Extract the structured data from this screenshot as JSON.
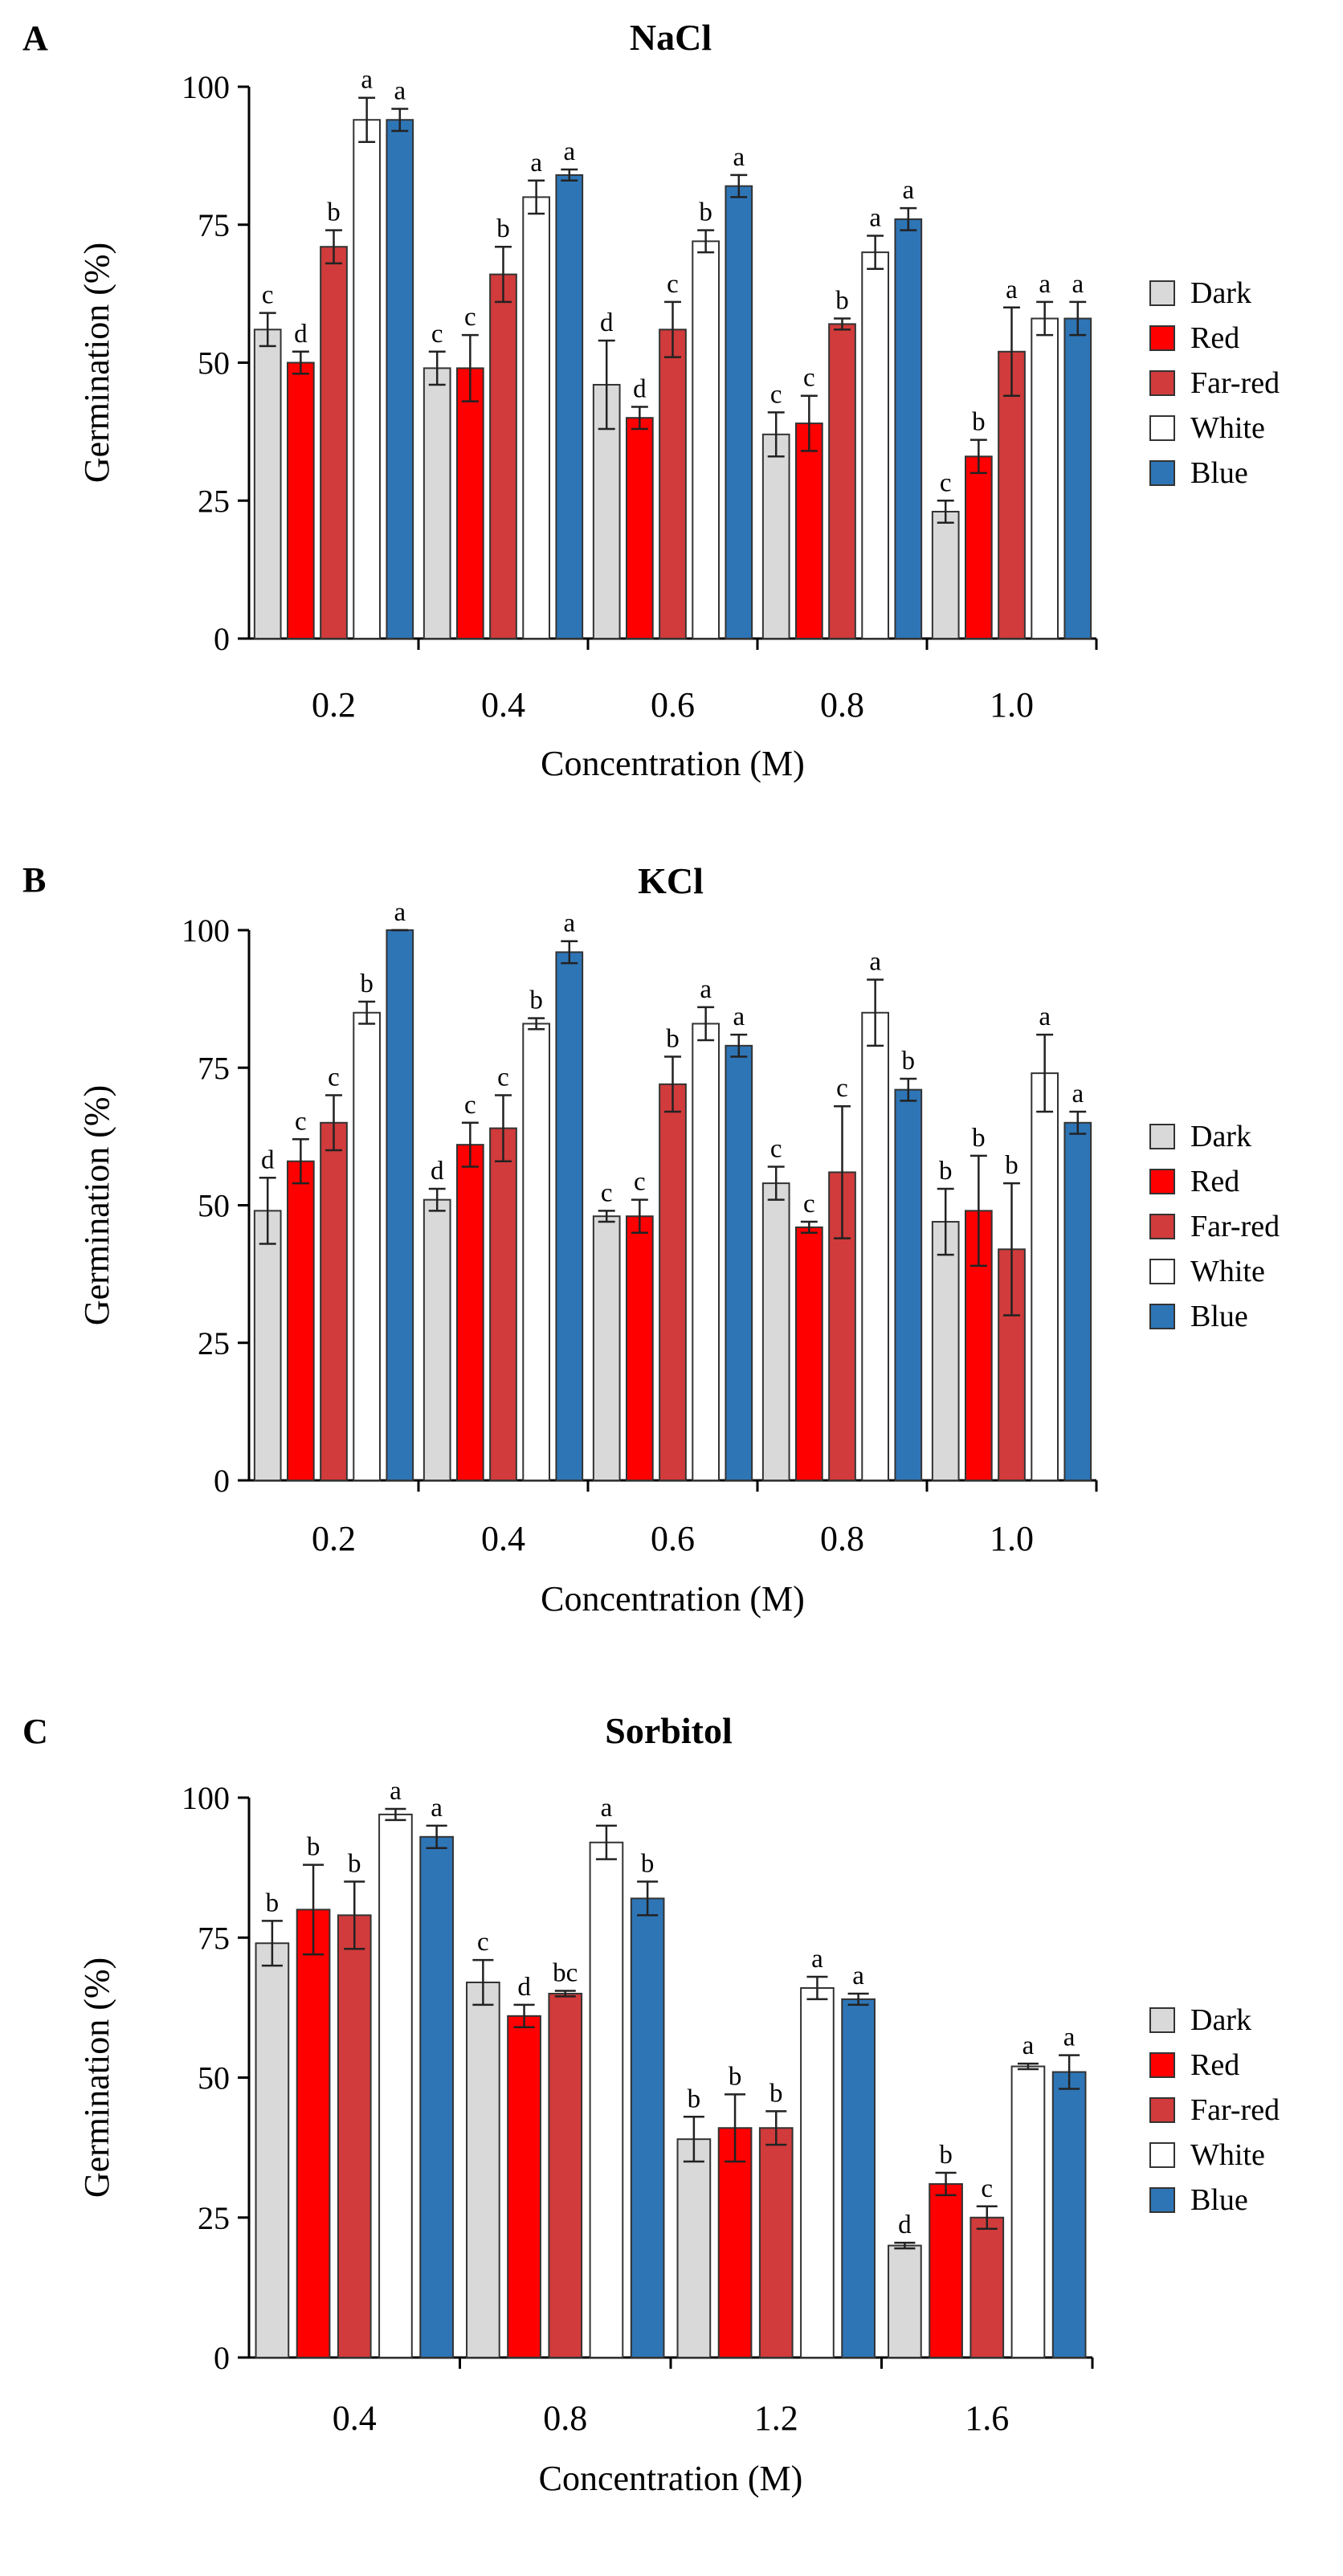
{
  "figure": {
    "series_meta": [
      {
        "name": "Dark",
        "color": "#d9d9d9"
      },
      {
        "name": "Red",
        "color": "#ff0000"
      },
      {
        "name": "Far-red",
        "color": "#d13b3b"
      },
      {
        "name": "White",
        "color": "#ffffff"
      },
      {
        "name": "Blue",
        "color": "#2e75b6"
      }
    ]
  },
  "chart_data": [
    {
      "panel": "A",
      "type": "bar",
      "title": "NaCl",
      "xlabel": "Concentration (M)",
      "ylabel": "Germination (%)",
      "ylim": [
        0,
        100
      ],
      "yticks": [
        "0",
        "25",
        "50",
        "75",
        "100"
      ],
      "legend_position": "right",
      "categories": [
        "0.2",
        "0.4",
        "0.6",
        "0.8",
        "1.0"
      ],
      "series": [
        {
          "name": "Dark",
          "color": "#d9d9d9",
          "values": [
            56,
            49,
            46,
            37,
            23
          ],
          "errors": [
            3,
            3,
            8,
            4,
            2
          ],
          "letters": [
            "c",
            "c",
            "d",
            "c",
            "c"
          ]
        },
        {
          "name": "Red",
          "color": "#ff0000",
          "values": [
            50,
            49,
            40,
            39,
            33
          ],
          "errors": [
            2,
            6,
            2,
            5,
            3
          ],
          "letters": [
            "d",
            "c",
            "d",
            "c",
            "b"
          ]
        },
        {
          "name": "Far-red",
          "color": "#d13b3b",
          "values": [
            71,
            66,
            56,
            57,
            52
          ],
          "errors": [
            3,
            5,
            5,
            1,
            8
          ],
          "letters": [
            "b",
            "b",
            "c",
            "b",
            "a"
          ]
        },
        {
          "name": "White",
          "color": "#ffffff",
          "values": [
            94,
            80,
            72,
            70,
            58
          ],
          "errors": [
            4,
            3,
            2,
            3,
            3
          ],
          "letters": [
            "a",
            "a",
            "b",
            "a",
            "a"
          ]
        },
        {
          "name": "Blue",
          "color": "#2e75b6",
          "values": [
            94,
            84,
            82,
            76,
            58
          ],
          "errors": [
            2,
            1,
            2,
            2,
            3
          ],
          "letters": [
            "a",
            "a",
            "a",
            "a",
            "a"
          ]
        }
      ]
    },
    {
      "panel": "B",
      "type": "bar",
      "title": "KCl",
      "xlabel": "Concentration (M)",
      "ylabel": "Germination (%)",
      "ylim": [
        0,
        100
      ],
      "yticks": [
        "0",
        "25",
        "50",
        "75",
        "100"
      ],
      "legend_position": "right",
      "categories": [
        "0.2",
        "0.4",
        "0.6",
        "0.8",
        "1.0"
      ],
      "series": [
        {
          "name": "Dark",
          "color": "#d9d9d9",
          "values": [
            49,
            51,
            48,
            54,
            47
          ],
          "errors": [
            6,
            2,
            1,
            3,
            6
          ],
          "letters": [
            "d",
            "d",
            "c",
            "c",
            "b"
          ]
        },
        {
          "name": "Red",
          "color": "#ff0000",
          "values": [
            58,
            61,
            48,
            46,
            49
          ],
          "errors": [
            4,
            4,
            3,
            1,
            10
          ],
          "letters": [
            "c",
            "c",
            "c",
            "c",
            "b"
          ]
        },
        {
          "name": "Far-red",
          "color": "#d13b3b",
          "values": [
            65,
            64,
            72,
            56,
            42
          ],
          "errors": [
            5,
            6,
            5,
            12,
            12
          ],
          "letters": [
            "c",
            "c",
            "b",
            "c",
            "b"
          ]
        },
        {
          "name": "White",
          "color": "#ffffff",
          "values": [
            85,
            83,
            83,
            85,
            74
          ],
          "errors": [
            2,
            1,
            3,
            6,
            7
          ],
          "letters": [
            "b",
            "b",
            "a",
            "a",
            "a"
          ]
        },
        {
          "name": "Blue",
          "color": "#2e75b6",
          "values": [
            100,
            96,
            79,
            71,
            65
          ],
          "errors": [
            0,
            2,
            2,
            2,
            2
          ],
          "letters": [
            "a",
            "a",
            "a",
            "b",
            "a"
          ]
        }
      ]
    },
    {
      "panel": "C",
      "type": "bar",
      "title": "Sorbitol",
      "xlabel": "Concentration (M)",
      "ylabel": "Germination (%)",
      "ylim": [
        0,
        100
      ],
      "yticks": [
        "0",
        "25",
        "50",
        "75",
        "100"
      ],
      "legend_position": "right",
      "categories": [
        "0.4",
        "0.8",
        "1.2",
        "1.6"
      ],
      "series": [
        {
          "name": "Dark",
          "color": "#d9d9d9",
          "values": [
            74,
            67,
            39,
            20
          ],
          "errors": [
            4,
            4,
            4,
            0.5
          ],
          "letters": [
            "b",
            "c",
            "b",
            "d"
          ]
        },
        {
          "name": "Red",
          "color": "#ff0000",
          "values": [
            80,
            61,
            41,
            31
          ],
          "errors": [
            8,
            2,
            6,
            2
          ],
          "letters": [
            "b",
            "d",
            "b",
            "b"
          ]
        },
        {
          "name": "Far-red",
          "color": "#d13b3b",
          "values": [
            79,
            65,
            41,
            25
          ],
          "errors": [
            6,
            0.5,
            3,
            2
          ],
          "letters": [
            "b",
            "bc",
            "b",
            "c"
          ]
        },
        {
          "name": "White",
          "color": "#ffffff",
          "values": [
            97,
            92,
            66,
            52
          ],
          "errors": [
            1,
            3,
            2,
            0.5
          ],
          "letters": [
            "a",
            "a",
            "a",
            "a"
          ]
        },
        {
          "name": "Blue",
          "color": "#2e75b6",
          "values": [
            93,
            82,
            64,
            51
          ],
          "errors": [
            2,
            3,
            1,
            3
          ],
          "letters": [
            "a",
            "b",
            "a",
            "a"
          ]
        }
      ]
    }
  ]
}
